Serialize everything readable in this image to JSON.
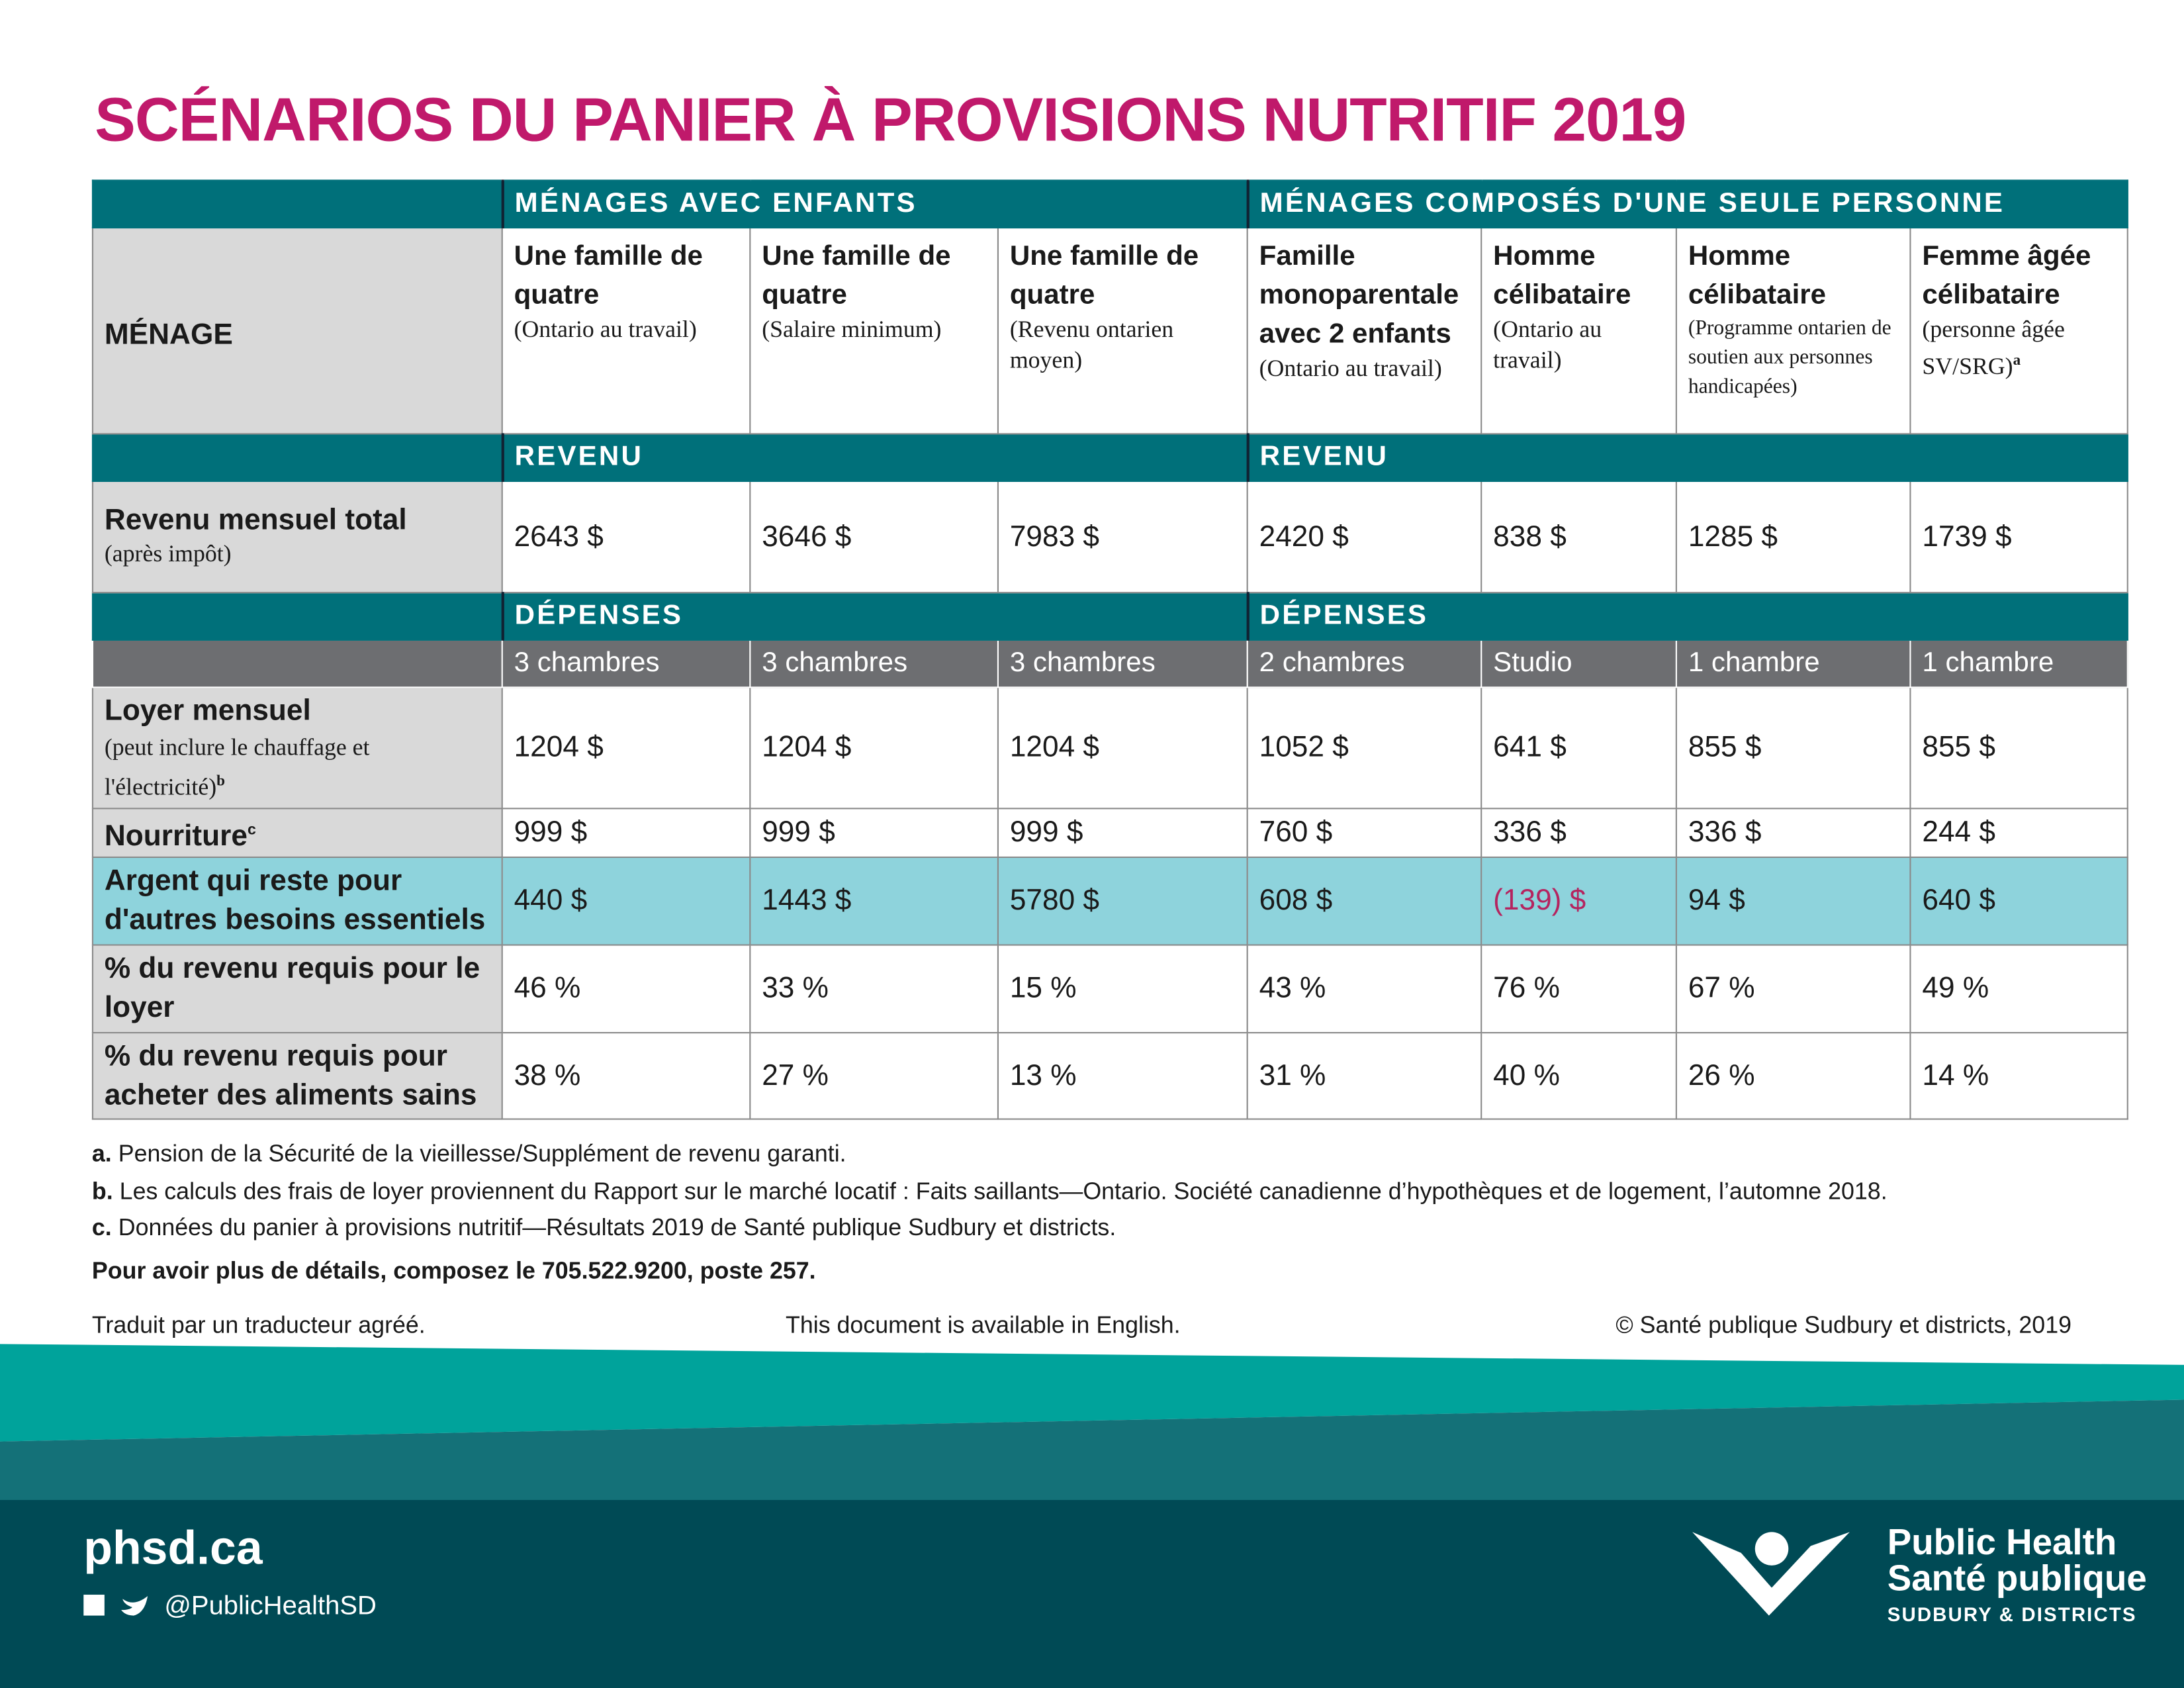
{
  "title": "SCÉNARIOS DU PANIER À PROVISIONS NUTRITIF 2019",
  "table": {
    "groups": [
      "MÉNAGES AVEC ENFANTS",
      "MÉNAGES COMPOSÉS D'UNE SEULE PERSONNE"
    ],
    "household_label": "MÉNAGE",
    "households": [
      {
        "name": "Une famille de quatre",
        "detail": "(Ontario au travail)"
      },
      {
        "name": "Une famille de quatre",
        "detail": "(Salaire minimum)"
      },
      {
        "name": "Une famille de quatre",
        "detail": "(Revenu ontarien moyen)"
      },
      {
        "name": "Famille monoparentale avec 2 enfants",
        "detail": "(Ontario au travail)"
      },
      {
        "name": "Homme célibataire",
        "detail": "(Ontario au travail)"
      },
      {
        "name": "Homme célibataire",
        "detail": "(Programme ontarien de soutien aux personnes handicapées)"
      },
      {
        "name": "Femme âgée célibataire",
        "detail": "(personne âgée SV/SRG)",
        "note": "a"
      }
    ],
    "revenue_headers": [
      "REVENU",
      "REVENU"
    ],
    "income": {
      "label": "Revenu mensuel total",
      "sublabel": "(après impôt)",
      "values": [
        "2643 $",
        "3646 $",
        "7983 $",
        "2420 $",
        "838 $",
        "1285 $",
        "1739 $"
      ]
    },
    "expense_headers": [
      "DÉPENSES",
      "DÉPENSES"
    ],
    "housing": [
      "3 chambres",
      "3 chambres",
      "3 chambres",
      "2 chambres",
      "Studio",
      "1 chambre",
      "1 chambre"
    ],
    "rows": [
      {
        "label": "Loyer mensuel",
        "sublabel": "(peut inclure le chauffage et l'électricité)",
        "note": "b",
        "values": [
          "1204 $",
          "1204 $",
          "1204 $",
          "1052 $",
          "641 $",
          "855 $",
          "855 $"
        ]
      },
      {
        "label": "Nourriture",
        "note": "c",
        "values": [
          "999 $",
          "999 $",
          "999 $",
          "760 $",
          "336 $",
          "336 $",
          "244 $"
        ]
      },
      {
        "label": "Argent qui reste pour d'autres besoins essentiels",
        "values": [
          "440 $",
          "1443 $",
          "5780 $",
          "608 $",
          "(139) $",
          "94 $",
          "640 $"
        ]
      },
      {
        "label": "% du revenu requis pour le loyer",
        "values": [
          "46 %",
          "33 %",
          "15 %",
          "43 %",
          "76 %",
          "67 %",
          "49 %"
        ]
      },
      {
        "label": "% du revenu requis pour acheter des aliments sains",
        "values": [
          "38 %",
          "27 %",
          "13 %",
          "31 %",
          "40 %",
          "26 %",
          "14 %"
        ]
      }
    ]
  },
  "footnotes": [
    {
      "letter": "a.",
      "text": "Pension de la Sécurité de la vieillesse/Supplément de revenu garanti."
    },
    {
      "letter": "b.",
      "text": "Les calculs des frais de loyer proviennent du Rapport sur le marché locatif : Faits saillants—Ontario. Société canadienne d’hypothèques et de logement, l’automne 2018."
    },
    {
      "letter": "c.",
      "text": "Données du panier à provisions nutritif—Résultats 2019 de Santé publique Sudbury et districts."
    }
  ],
  "contact": "Pour avoir plus de détails, composez le 705.522.9200, poste 257.",
  "footer": {
    "left": "Traduit par un traducteur agréé.",
    "center": "This document is available in English.",
    "right": "© Santé publique Sudbury et districts, 2019"
  },
  "brand": {
    "website": "phsd.ca",
    "social": "@PublicHealthSD",
    "logo": [
      "Public Health",
      "Santé publique",
      "SUDBURY & DISTRICTS"
    ]
  }
}
